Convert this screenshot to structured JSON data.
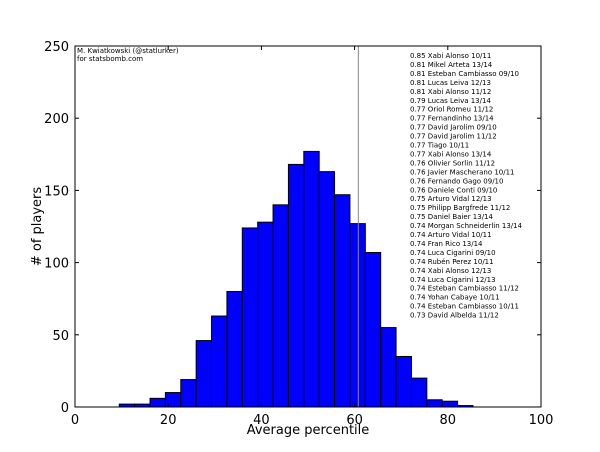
{
  "chart_data": {
    "type": "bar",
    "title": "",
    "xlabel": "Average percentile",
    "ylabel": "# of players",
    "xlim": [
      0,
      100
    ],
    "ylim": [
      0,
      250
    ],
    "xticks": [
      0,
      20,
      40,
      60,
      80,
      100
    ],
    "yticks": [
      0,
      50,
      100,
      150,
      200,
      250
    ],
    "bar_color": "#0000ff",
    "bin_edges": [
      9.5,
      12.8,
      16.1,
      19.4,
      22.7,
      26.0,
      29.3,
      32.6,
      35.9,
      39.2,
      42.5,
      45.8,
      49.1,
      52.4,
      55.7,
      59.0,
      62.3,
      65.6,
      68.9,
      72.2,
      75.5,
      78.8,
      82.1,
      85.4
    ],
    "values": [
      2,
      2,
      6,
      10,
      19,
      46,
      63,
      80,
      124,
      128,
      140,
      168,
      177,
      163,
      147,
      127,
      107,
      55,
      35,
      20,
      5,
      4,
      1
    ],
    "threshold_line_x": 60.8,
    "credit": [
      "M. Kwiatkowski (@statlurker)",
      "for statsbomb.com"
    ],
    "annotations": [
      "0.85 Xabi Alonso 10/11",
      "0.81 Mikel Arteta 13/14",
      "0.81 Esteban Cambiasso 09/10",
      "0.81 Lucas Leiva 12/13",
      "0.81 Xabi Alonso 11/12",
      "0.79 Lucas Leiva 13/14",
      "0.77 Oriol Romeu 11/12",
      "0.77 Fernandinho 13/14",
      "0.77 David Jarolim 09/10",
      "0.77 David Jarolim 11/12",
      "0.77 Tiago 10/11",
      "0.77 Xabi Alonso 13/14",
      "0.76 Olivier Sorlin 11/12",
      "0.76 Javier Mascherano 10/11",
      "0.76 Fernando Gago 09/10",
      "0.76 Daniele Conti 09/10",
      "0.75 Arturo Vidal 12/13",
      "0.75 Philipp Bargfrede 11/12",
      "0.75 Daniel Baier 13/14",
      "0.74 Morgan Schneiderlin 13/14",
      "0.74 Arturo Vidal 10/11",
      "0.74 Fran Rico 13/14",
      "0.74 Luca Cigarini 09/10",
      "0.74 Rubén Perez 10/11",
      "0.74 Xabi Alonso 12/13",
      "0.74 Luca Cigarini 12/13",
      "0.74 Esteban Cambiasso 11/12",
      "0.74 Yohan Cabaye 10/11",
      "0.74 Esteban Cambiasso 10/11",
      "0.73 David Albelda 11/12"
    ]
  }
}
